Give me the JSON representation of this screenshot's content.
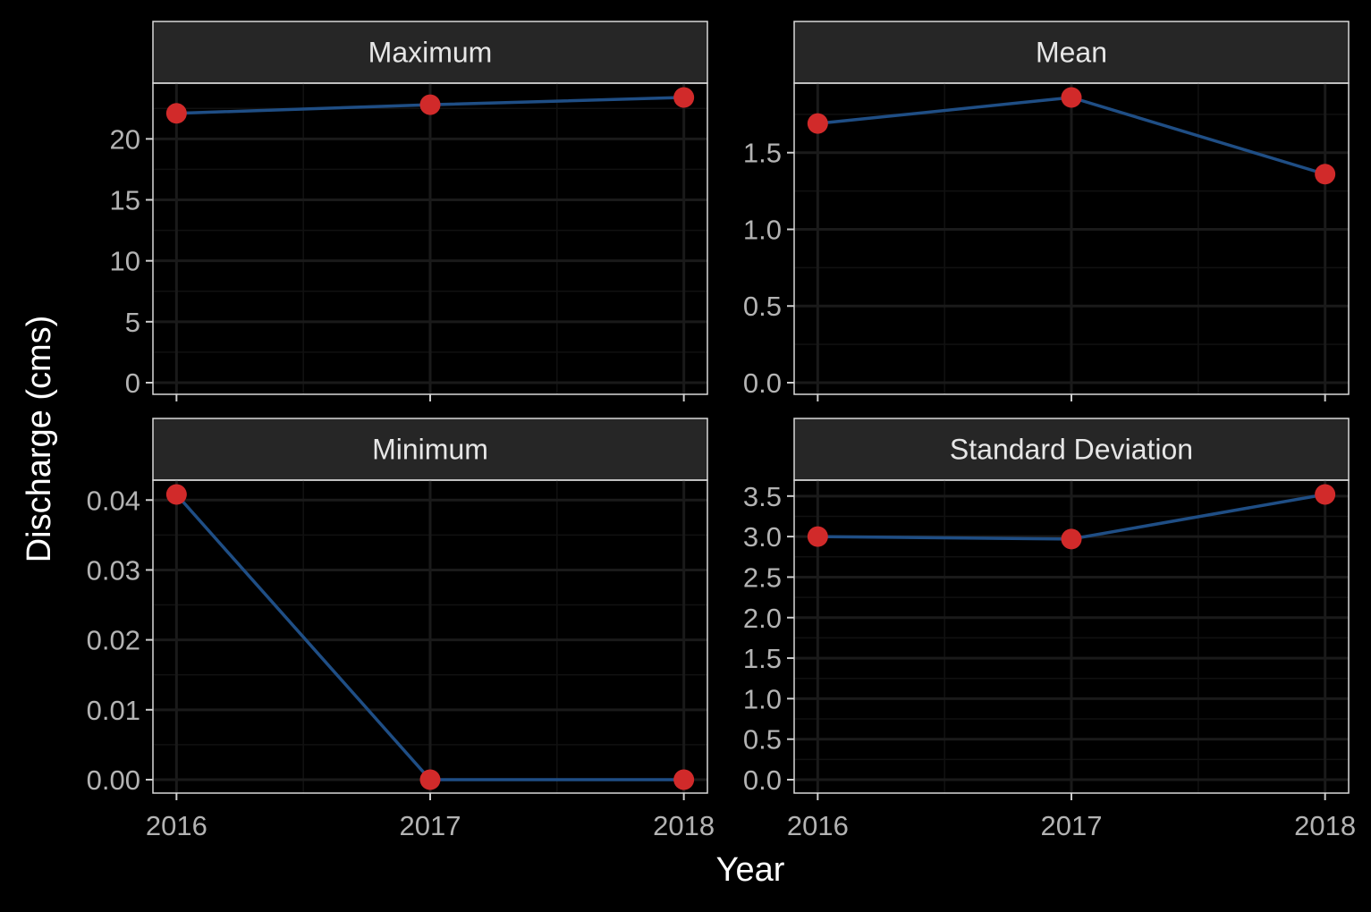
{
  "chart_data": {
    "type": "line",
    "xlabel": "Year",
    "ylabel": "Discharge (cms)",
    "colors": {
      "line": "#1f4e85",
      "point": "#d12a2a"
    },
    "panels": [
      {
        "title": "Maximum",
        "x": [
          2016,
          2017,
          2018
        ],
        "y": [
          22.1,
          22.8,
          23.4
        ],
        "ylim": [
          0,
          23.4
        ],
        "yticks": [
          0,
          5,
          10,
          15,
          20
        ],
        "yticklabels": [
          "0",
          "5",
          "10",
          "15",
          "20"
        ]
      },
      {
        "title": "Mean",
        "x": [
          2016,
          2017,
          2018
        ],
        "y": [
          1.69,
          1.86,
          1.36
        ],
        "ylim": [
          0,
          1.86
        ],
        "yticks": [
          0,
          0.5,
          1.0,
          1.5
        ],
        "yticklabels": [
          "0.0",
          "0.5",
          "1.0",
          "1.5"
        ]
      },
      {
        "title": "Minimum",
        "x": [
          2016,
          2017,
          2018
        ],
        "y": [
          0.0408,
          0.0,
          0.0
        ],
        "ylim": [
          0,
          0.0408
        ],
        "yticks": [
          0,
          0.01,
          0.02,
          0.03,
          0.04
        ],
        "yticklabels": [
          "0.00",
          "0.01",
          "0.02",
          "0.03",
          "0.04"
        ]
      },
      {
        "title": "Standard Deviation",
        "x": [
          2016,
          2017,
          2018
        ],
        "y": [
          3.0,
          2.97,
          3.52
        ],
        "ylim": [
          0,
          3.52
        ],
        "yticks": [
          0,
          0.5,
          1.0,
          1.5,
          2.0,
          2.5,
          3.0,
          3.5
        ],
        "yticklabels": [
          "0.0",
          "0.5",
          "1.0",
          "1.5",
          "2.0",
          "2.5",
          "3.0",
          "3.5"
        ]
      }
    ],
    "xticks": [
      2016,
      2017,
      2018
    ],
    "xticklabels": [
      "2016",
      "2017",
      "2018"
    ],
    "grid": true
  }
}
